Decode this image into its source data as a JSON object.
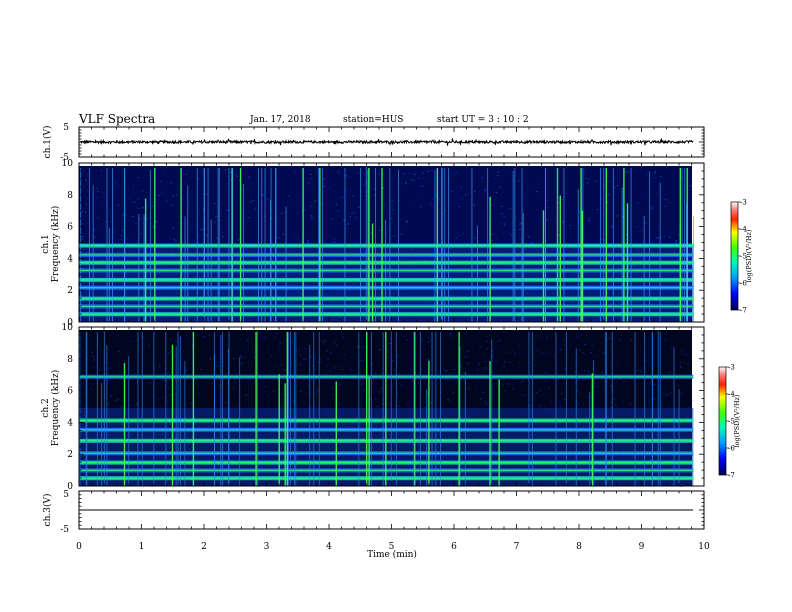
{
  "header": {
    "title": "VLF Spectra",
    "date": "Jan. 17, 2018",
    "station": "station=HUS",
    "start_ut": "start  UT =   3 : 10 : 2"
  },
  "chart_data": [
    {
      "type": "line",
      "panel": "ch1-waveform",
      "ylabel": "ch.1(V)",
      "ylim": [
        -5,
        5
      ],
      "yticks": [
        "5",
        "-5"
      ],
      "xlim": [
        0,
        10
      ],
      "series": [
        {
          "x_range": [
            0,
            9.83
          ],
          "level_v": 0.0,
          "noise_amplitude_v": 0.4
        }
      ]
    },
    {
      "type": "heatmap",
      "panel": "ch1-spectrogram",
      "ylabel_line1": "ch.1",
      "ylabel_line2": "Frequency  (kHz)",
      "ylim": [
        0,
        10
      ],
      "yticks": [
        "0",
        "2",
        "4",
        "6",
        "8",
        "10"
      ],
      "xlim": [
        0,
        9.83
      ],
      "bands_khz": [
        0.5,
        1.0,
        1.5,
        2.2,
        2.7,
        3.3,
        3.8,
        4.3,
        4.9
      ],
      "colorbar": {
        "label": "log(PSD)(V²/Hz)",
        "ticks": [
          "-3",
          "-4",
          "-5",
          "-6",
          "-7"
        ],
        "range": [
          -7,
          -3
        ]
      }
    },
    {
      "type": "heatmap",
      "panel": "ch2-spectrogram",
      "ylabel_line1": "ch.2",
      "ylabel_line2": "Frequency  (kHz)",
      "ylim": [
        0,
        10
      ],
      "yticks": [
        "0",
        "2",
        "4",
        "6",
        "8",
        "10"
      ],
      "xlim": [
        0,
        9.83
      ],
      "bands_khz": [
        0.5,
        1.0,
        1.5,
        2.1,
        2.9,
        3.6,
        4.2,
        7.0
      ],
      "colorbar": {
        "label": "log(PSD)(V²/Hz)",
        "ticks": [
          "-3",
          "-4",
          "-5",
          "-6",
          "-7"
        ],
        "range": [
          -7,
          -3
        ]
      }
    },
    {
      "type": "line",
      "panel": "ch3-waveform",
      "ylabel": "ch.3(V)",
      "ylim": [
        -5,
        5
      ],
      "yticks": [
        "5",
        "-5"
      ],
      "xlim": [
        0,
        10
      ],
      "xlabel": "Time  (min)",
      "xticks": [
        "0",
        "1",
        "2",
        "3",
        "4",
        "5",
        "6",
        "7",
        "8",
        "9",
        "10"
      ],
      "series": [
        {
          "x_range": [
            0,
            9.83
          ],
          "level_v": 0.0,
          "noise_amplitude_v": 0.0
        }
      ]
    }
  ]
}
